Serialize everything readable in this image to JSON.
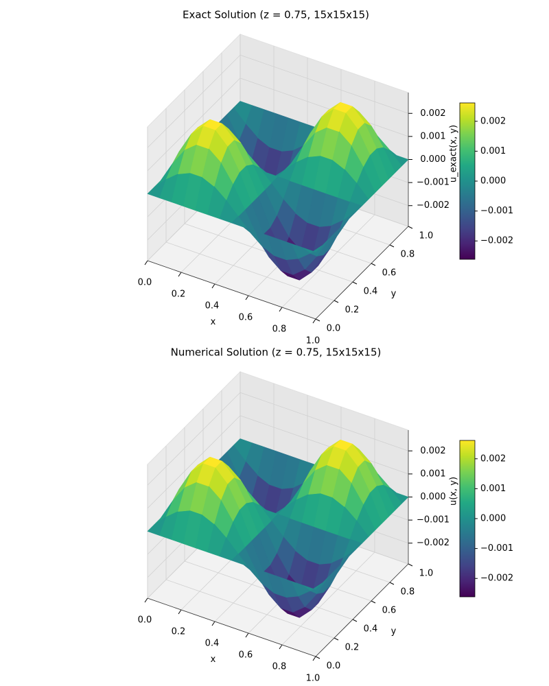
{
  "chart_data": [
    {
      "type": "surface",
      "title": "Exact Solution (z = 0.75, 15x15x15)",
      "xlabel": "x",
      "ylabel": "y",
      "colorbar_label": "u_exact(x, y)",
      "colormap": "viridis",
      "x": [
        0,
        0.0714,
        0.1429,
        0.2143,
        0.2857,
        0.3571,
        0.4286,
        0.5,
        0.5714,
        0.6429,
        0.7143,
        0.7857,
        0.8571,
        0.9286,
        1
      ],
      "y": [
        0,
        0.0714,
        0.1429,
        0.2143,
        0.2857,
        0.3571,
        0.4286,
        0.5,
        0.5714,
        0.6429,
        0.7143,
        0.7857,
        0.8571,
        0.9286,
        1
      ],
      "z": [
        [
          0,
          0,
          0,
          0,
          0,
          0,
          0,
          0,
          0,
          0,
          0,
          0,
          0,
          0,
          0
        ],
        [
          0,
          0.000518,
          0.000933,
          0.001163,
          0.001163,
          0.000933,
          0.000518,
          0,
          -0.000518,
          -0.000933,
          -0.001163,
          -0.001163,
          -0.000933,
          -0.000518,
          0
        ],
        [
          0,
          0.000933,
          0.001681,
          0.002096,
          0.002096,
          0.001681,
          0.000933,
          0,
          -0.000933,
          -0.001681,
          -0.002096,
          -0.002096,
          -0.001681,
          -0.000933,
          0
        ],
        [
          0,
          0.001163,
          0.002096,
          0.002614,
          0.002614,
          0.002096,
          0.001163,
          0,
          -0.001163,
          -0.002096,
          -0.002614,
          -0.002614,
          -0.002096,
          -0.001163,
          0
        ],
        [
          0,
          0.001163,
          0.002096,
          0.002614,
          0.002614,
          0.002096,
          0.001163,
          0,
          -0.001163,
          -0.002096,
          -0.002614,
          -0.002614,
          -0.002096,
          -0.001163,
          0
        ],
        [
          0,
          0.000933,
          0.001681,
          0.002096,
          0.002096,
          0.001681,
          0.000933,
          0,
          -0.000933,
          -0.001681,
          -0.002096,
          -0.002096,
          -0.001681,
          -0.000933,
          0
        ],
        [
          0,
          0.000518,
          0.000933,
          0.001163,
          0.001163,
          0.000933,
          0.000518,
          0,
          -0.000518,
          -0.000933,
          -0.001163,
          -0.001163,
          -0.000933,
          -0.000518,
          0
        ],
        [
          0,
          0,
          0,
          0,
          0,
          0,
          0,
          0,
          0,
          0,
          0,
          0,
          0,
          0,
          0
        ],
        [
          0,
          -0.000518,
          -0.000933,
          -0.001163,
          -0.001163,
          -0.000933,
          -0.000518,
          0,
          0.000518,
          0.000933,
          0.001163,
          0.001163,
          0.000933,
          0.000518,
          0
        ],
        [
          0,
          -0.000933,
          -0.001681,
          -0.002096,
          -0.002096,
          -0.001681,
          -0.000933,
          0,
          0.000933,
          0.001681,
          0.002096,
          0.002096,
          0.001681,
          0.000933,
          0
        ],
        [
          0,
          -0.001163,
          -0.002096,
          -0.002614,
          -0.002614,
          -0.002096,
          -0.001163,
          0,
          0.001163,
          0.002096,
          0.002614,
          0.002614,
          0.002096,
          0.001163,
          0
        ],
        [
          0,
          -0.001163,
          -0.002096,
          -0.002614,
          -0.002614,
          -0.002096,
          -0.001163,
          0,
          0.001163,
          0.002096,
          0.002614,
          0.002614,
          0.002096,
          0.001163,
          0
        ],
        [
          0,
          -0.000933,
          -0.001681,
          -0.002096,
          -0.002096,
          -0.001681,
          -0.000933,
          0,
          0.000933,
          0.001681,
          0.002096,
          0.002096,
          0.001681,
          0.000933,
          0
        ],
        [
          0,
          -0.000518,
          -0.000933,
          -0.001163,
          -0.001163,
          -0.000933,
          -0.000518,
          0,
          0.000518,
          0.000933,
          0.001163,
          0.001163,
          0.000933,
          0.000518,
          0
        ],
        [
          0,
          0,
          0,
          0,
          0,
          0,
          0,
          0,
          0,
          0,
          0,
          0,
          0,
          0,
          0
        ]
      ],
      "xlim": [
        0,
        1
      ],
      "ylim": [
        0,
        1
      ],
      "zlim": [
        -0.0029,
        0.0029
      ],
      "xticks": [
        {
          "value": 0,
          "label": "0.0"
        },
        0.2,
        0.4,
        0.6,
        0.8,
        {
          "value": 1,
          "label": "1.0"
        }
      ],
      "yticks": [
        {
          "value": 0,
          "label": "0.0"
        },
        0.2,
        0.4,
        0.6,
        0.8,
        {
          "value": 1,
          "label": "1.0"
        }
      ],
      "zticks": [
        {
          "value": -0.002,
          "label": "−0.002"
        },
        {
          "value": -0.001,
          "label": "−0.001"
        },
        {
          "value": 0,
          "label": "0.000"
        },
        0.001,
        0.002
      ],
      "colorbar_ticks": [
        {
          "value": -0.002,
          "label": "−0.002"
        },
        {
          "value": -0.001,
          "label": "−0.001"
        },
        {
          "value": 0,
          "label": "0.000"
        },
        0.001,
        0.002
      ]
    },
    {
      "type": "surface",
      "title": "Numerical Solution (z = 0.75, 15x15x15)",
      "xlabel": "x",
      "ylabel": "y",
      "colorbar_label": "u(x, y)",
      "colormap": "viridis",
      "x": [
        0,
        0.0714,
        0.1429,
        0.2143,
        0.2857,
        0.3571,
        0.4286,
        0.5,
        0.5714,
        0.6429,
        0.7143,
        0.7857,
        0.8571,
        0.9286,
        1
      ],
      "y": [
        0,
        0.0714,
        0.1429,
        0.2143,
        0.2857,
        0.3571,
        0.4286,
        0.5,
        0.5714,
        0.6429,
        0.7143,
        0.7857,
        0.8571,
        0.9286,
        1
      ],
      "z": [
        [
          0,
          0,
          0,
          0,
          0,
          0,
          0,
          0,
          0,
          0,
          0,
          0,
          0,
          0,
          0
        ],
        [
          0,
          0.000518,
          0.000933,
          0.001163,
          0.001163,
          0.000933,
          0.000518,
          0,
          -0.000518,
          -0.000933,
          -0.001163,
          -0.001163,
          -0.000933,
          -0.000518,
          0
        ],
        [
          0,
          0.000933,
          0.001681,
          0.002096,
          0.002096,
          0.001681,
          0.000933,
          0,
          -0.000933,
          -0.001681,
          -0.002096,
          -0.002096,
          -0.001681,
          -0.000933,
          0
        ],
        [
          0,
          0.001163,
          0.002096,
          0.002614,
          0.002614,
          0.002096,
          0.001163,
          0,
          -0.001163,
          -0.002096,
          -0.002614,
          -0.002614,
          -0.002096,
          -0.001163,
          0
        ],
        [
          0,
          0.001163,
          0.002096,
          0.002614,
          0.002614,
          0.002096,
          0.001163,
          0,
          -0.001163,
          -0.002096,
          -0.002614,
          -0.002614,
          -0.002096,
          -0.001163,
          0
        ],
        [
          0,
          0.000933,
          0.001681,
          0.002096,
          0.002096,
          0.001681,
          0.000933,
          0,
          -0.000933,
          -0.001681,
          -0.002096,
          -0.002096,
          -0.001681,
          -0.000933,
          0
        ],
        [
          0,
          0.000518,
          0.000933,
          0.001163,
          0.001163,
          0.000933,
          0.000518,
          0,
          -0.000518,
          -0.000933,
          -0.001163,
          -0.001163,
          -0.000933,
          -0.000518,
          0
        ],
        [
          0,
          0,
          0,
          0,
          0,
          0,
          0,
          0,
          0,
          0,
          0,
          0,
          0,
          0,
          0
        ],
        [
          0,
          -0.000518,
          -0.000933,
          -0.001163,
          -0.001163,
          -0.000933,
          -0.000518,
          0,
          0.000518,
          0.000933,
          0.001163,
          0.001163,
          0.000933,
          0.000518,
          0
        ],
        [
          0,
          -0.000933,
          -0.001681,
          -0.002096,
          -0.002096,
          -0.001681,
          -0.000933,
          0,
          0.000933,
          0.001681,
          0.002096,
          0.002096,
          0.001681,
          0.000933,
          0
        ],
        [
          0,
          -0.001163,
          -0.002096,
          -0.002614,
          -0.002614,
          -0.002096,
          -0.001163,
          0,
          0.001163,
          0.002096,
          0.002614,
          0.002614,
          0.002096,
          0.001163,
          0
        ],
        [
          0,
          -0.001163,
          -0.002096,
          -0.002614,
          -0.002614,
          -0.002096,
          -0.001163,
          0,
          0.001163,
          0.002096,
          0.002614,
          0.002614,
          0.002096,
          0.001163,
          0
        ],
        [
          0,
          -0.000933,
          -0.001681,
          -0.002096,
          -0.002096,
          -0.001681,
          -0.000933,
          0,
          0.000933,
          0.001681,
          0.002096,
          0.002096,
          0.001681,
          0.000933,
          0
        ],
        [
          0,
          -0.000518,
          -0.000933,
          -0.001163,
          -0.001163,
          -0.000933,
          -0.000518,
          0,
          0.000518,
          0.000933,
          0.001163,
          0.001163,
          0.000933,
          0.000518,
          0
        ],
        [
          0,
          0,
          0,
          0,
          0,
          0,
          0,
          0,
          0,
          0,
          0,
          0,
          0,
          0,
          0
        ]
      ],
      "xlim": [
        0,
        1
      ],
      "ylim": [
        0,
        1
      ],
      "zlim": [
        -0.0029,
        0.0029
      ],
      "xticks": [
        {
          "value": 0,
          "label": "0.0"
        },
        0.2,
        0.4,
        0.6,
        0.8,
        {
          "value": 1,
          "label": "1.0"
        }
      ],
      "yticks": [
        {
          "value": 0,
          "label": "0.0"
        },
        0.2,
        0.4,
        0.6,
        0.8,
        {
          "value": 1,
          "label": "1.0"
        }
      ],
      "zticks": [
        {
          "value": -0.002,
          "label": "−0.002"
        },
        {
          "value": -0.001,
          "label": "−0.001"
        },
        {
          "value": 0,
          "label": "0.000"
        },
        0.001,
        0.002
      ],
      "colorbar_ticks": [
        {
          "value": -0.002,
          "label": "−0.002"
        },
        {
          "value": -0.001,
          "label": "−0.001"
        },
        {
          "value": 0,
          "label": "0.000"
        },
        0.001,
        0.002
      ]
    }
  ]
}
